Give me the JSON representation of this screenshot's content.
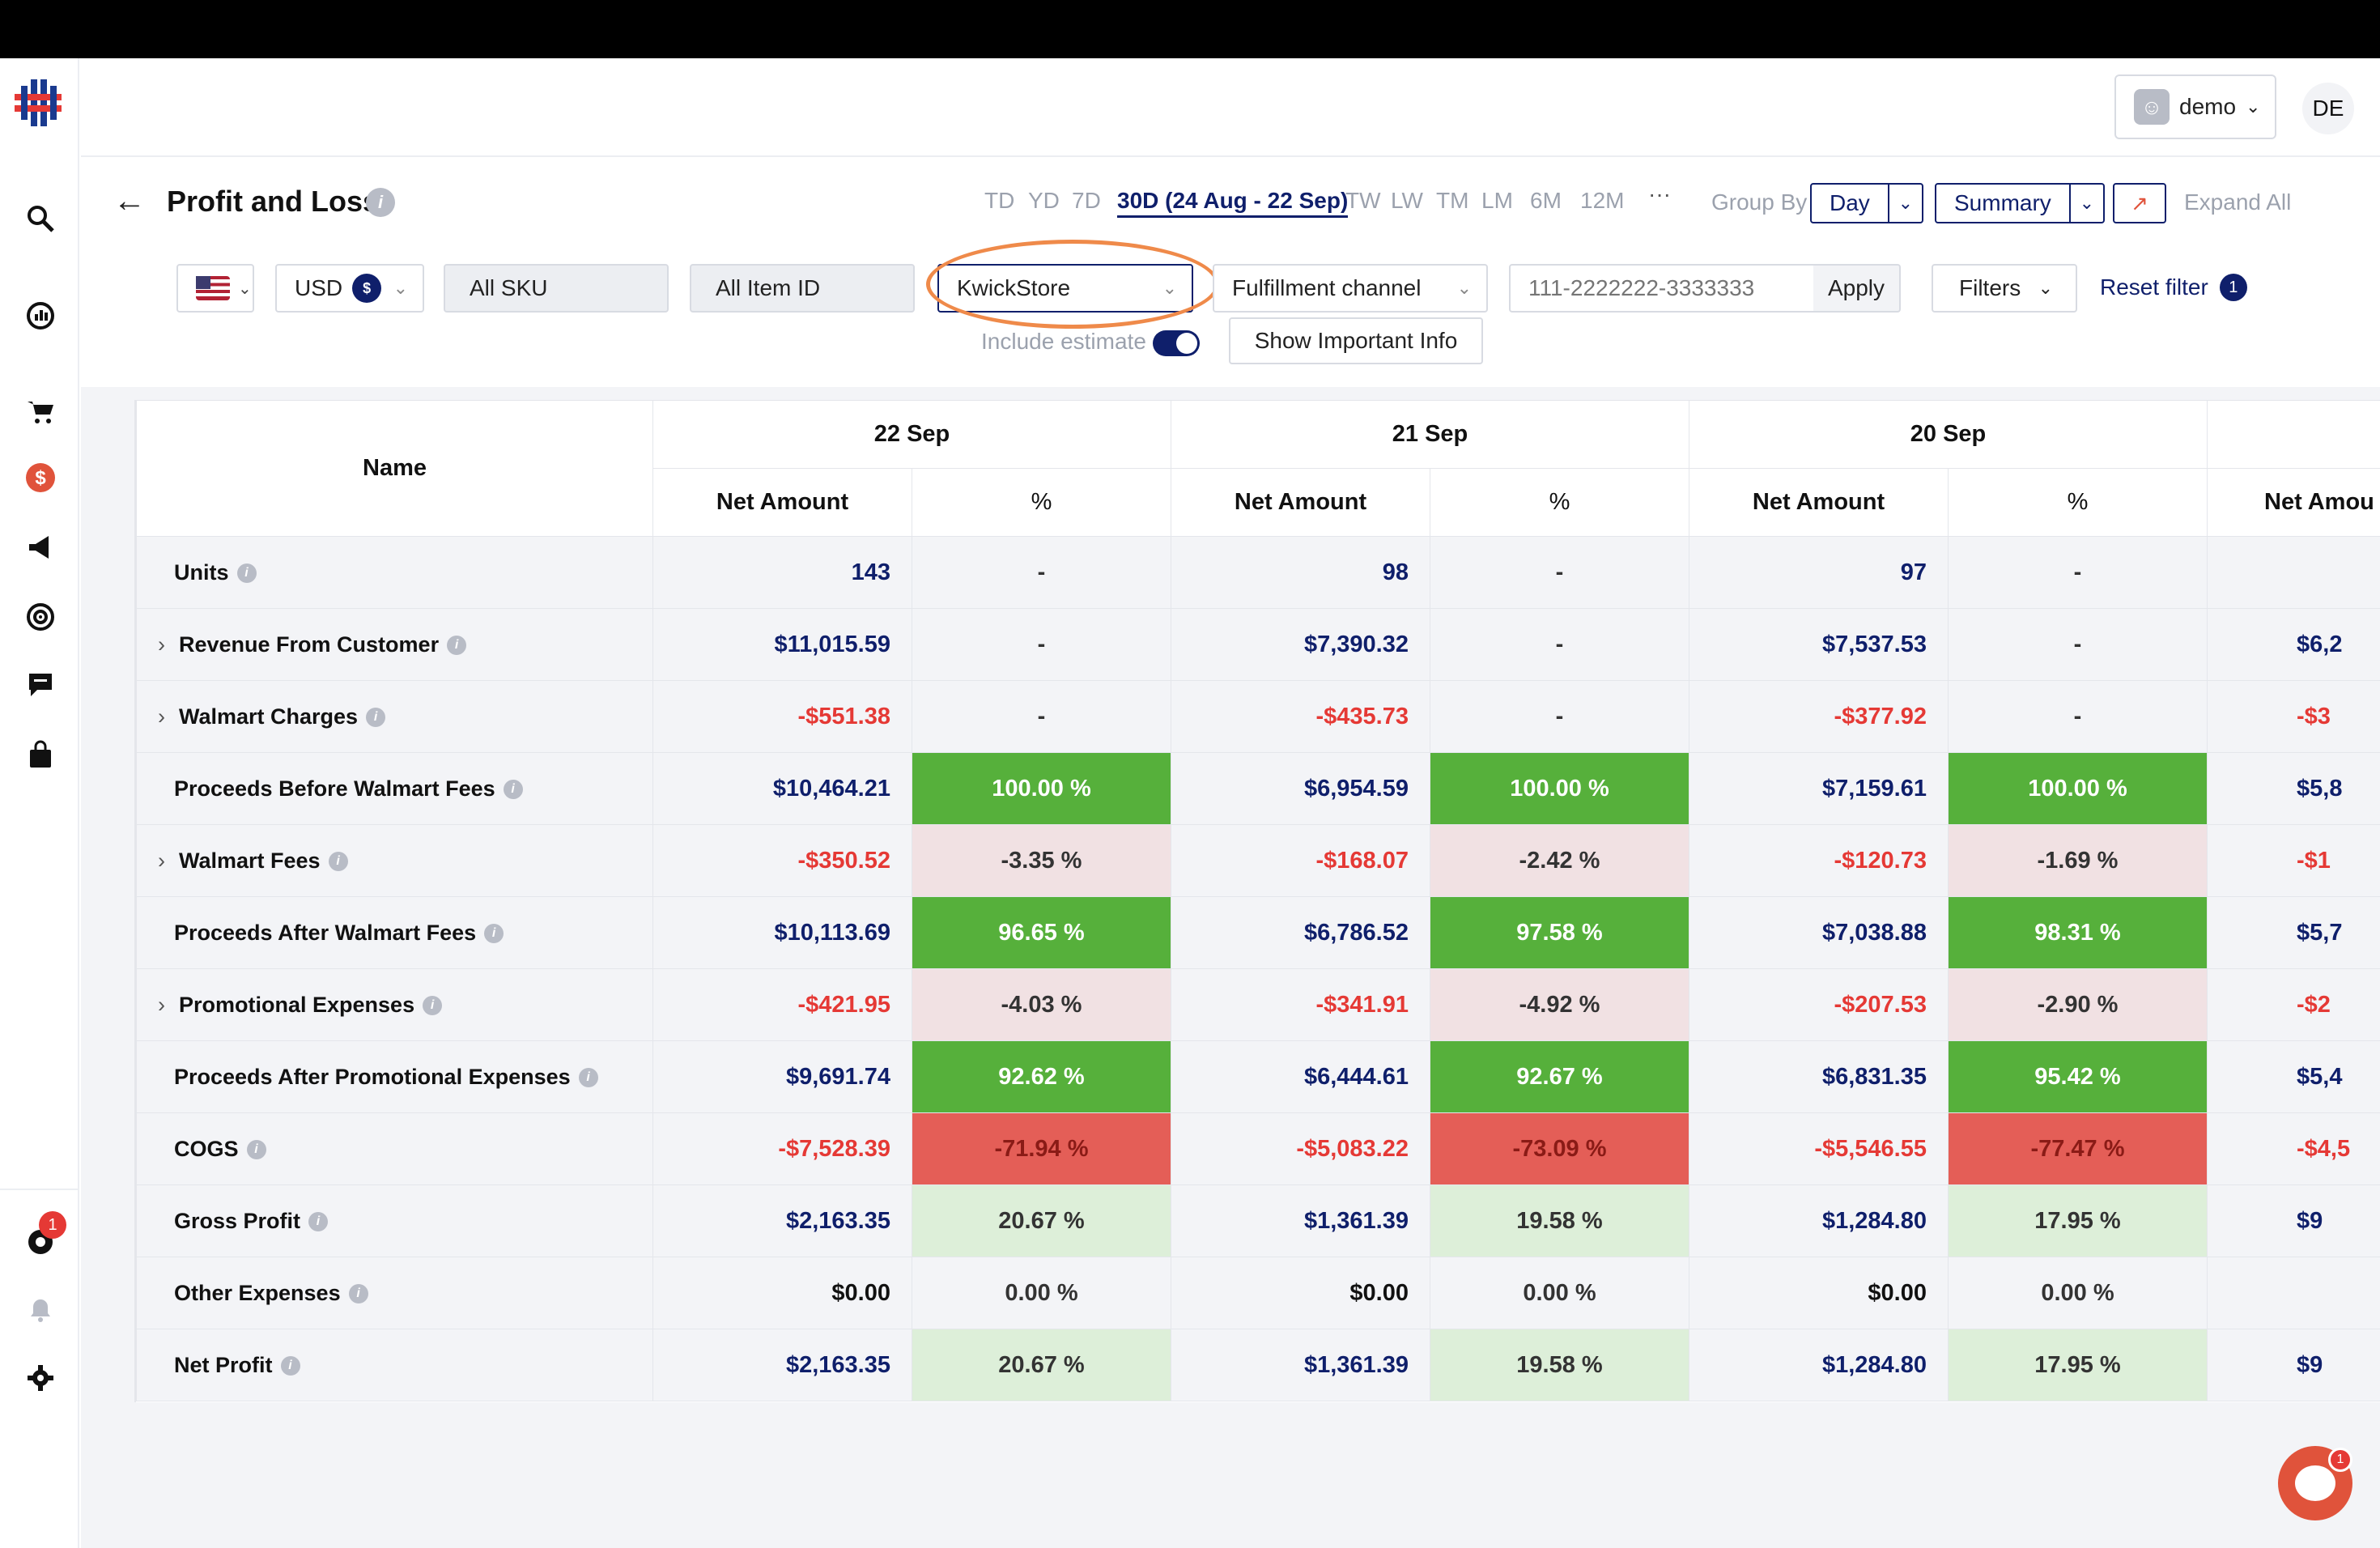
{
  "header": {
    "user": "demo",
    "initials": "DE"
  },
  "toolbar": {
    "title": "Profit and Loss",
    "ranges": [
      "TD",
      "YD",
      "7D",
      "30D (24 Aug - 22 Sep)",
      "TW",
      "LW",
      "TM",
      "LM",
      "6M",
      "12M"
    ],
    "active_range": "30D (24 Aug - 22 Sep)",
    "more": "···",
    "group_by_label": "Group By",
    "group_by_value": "Day",
    "view_value": "Summary",
    "expand_all_label": "Expand All"
  },
  "filters": {
    "currency": "USD",
    "currency_symbol": "$",
    "sku": "All SKU",
    "item_id": "All Item ID",
    "store": "KwickStore",
    "fulfillment": "Fulfillment channel",
    "order_placeholder": "111-2222222-3333333",
    "apply": "Apply",
    "filters_label": "Filters",
    "reset_label": "Reset filter",
    "reset_count": "1",
    "include_estimate": "Include estimate",
    "important_info": "Show Important Info"
  },
  "table": {
    "name_header": "Name",
    "dates": [
      "22 Sep",
      "21 Sep",
      "20 Sep"
    ],
    "net_amount": "Net Amount",
    "pct": "%",
    "partial_header": "Net Amou",
    "rows": [
      {
        "name": "Units",
        "expand": false,
        "info": true,
        "cells": [
          [
            "143",
            "-"
          ],
          [
            "98",
            "-"
          ],
          [
            "97",
            "-"
          ]
        ],
        "tone": "pos",
        "pct_style": "p-none",
        "partial": ""
      },
      {
        "name": "Revenue From Customer",
        "expand": true,
        "info": true,
        "cells": [
          [
            "$11,015.59",
            "-"
          ],
          [
            "$7,390.32",
            "-"
          ],
          [
            "$7,537.53",
            "-"
          ]
        ],
        "tone": "pos",
        "pct_style": "p-none",
        "partial": "$6,2"
      },
      {
        "name": "Walmart Charges",
        "expand": true,
        "info": true,
        "cells": [
          [
            "-$551.38",
            "-"
          ],
          [
            "-$435.73",
            "-"
          ],
          [
            "-$377.92",
            "-"
          ]
        ],
        "tone": "neg",
        "pct_style": "p-none",
        "partial": "-$3"
      },
      {
        "name": "Proceeds Before Walmart Fees",
        "expand": false,
        "info": true,
        "cells": [
          [
            "$10,464.21",
            "100.00 %"
          ],
          [
            "$6,954.59",
            "100.00 %"
          ],
          [
            "$7,159.61",
            "100.00 %"
          ]
        ],
        "tone": "pos",
        "pct_style": "p-green",
        "partial": "$5,8"
      },
      {
        "name": "Walmart Fees",
        "expand": true,
        "info": true,
        "cells": [
          [
            "-$350.52",
            "-3.35 %"
          ],
          [
            "-$168.07",
            "-2.42 %"
          ],
          [
            "-$120.73",
            "-1.69 %"
          ]
        ],
        "tone": "neg",
        "pct_style": "p-pink",
        "partial": "-$1"
      },
      {
        "name": "Proceeds After Walmart Fees",
        "expand": false,
        "info": true,
        "cells": [
          [
            "$10,113.69",
            "96.65 %"
          ],
          [
            "$6,786.52",
            "97.58 %"
          ],
          [
            "$7,038.88",
            "98.31 %"
          ]
        ],
        "tone": "pos",
        "pct_style": "p-green",
        "partial": "$5,7"
      },
      {
        "name": "Promotional Expenses",
        "expand": true,
        "info": true,
        "cells": [
          [
            "-$421.95",
            "-4.03 %"
          ],
          [
            "-$341.91",
            "-4.92 %"
          ],
          [
            "-$207.53",
            "-2.90 %"
          ]
        ],
        "tone": "neg",
        "pct_style": "p-pink",
        "partial": "-$2"
      },
      {
        "name": "Proceeds After Promotional Expenses",
        "expand": false,
        "info": true,
        "cells": [
          [
            "$9,691.74",
            "92.62 %"
          ],
          [
            "$6,444.61",
            "92.67 %"
          ],
          [
            "$6,831.35",
            "95.42 %"
          ]
        ],
        "tone": "pos",
        "pct_style": "p-green",
        "partial": "$5,4"
      },
      {
        "name": "COGS",
        "expand": false,
        "info": true,
        "cells": [
          [
            "-$7,528.39",
            "-71.94 %"
          ],
          [
            "-$5,083.22",
            "-73.09 %"
          ],
          [
            "-$5,546.55",
            "-77.47 %"
          ]
        ],
        "tone": "neg",
        "pct_style": "p-red",
        "partial": "-$4,5"
      },
      {
        "name": "Gross Profit",
        "expand": false,
        "info": true,
        "cells": [
          [
            "$2,163.35",
            "20.67 %"
          ],
          [
            "$1,361.39",
            "19.58 %"
          ],
          [
            "$1,284.80",
            "17.95 %"
          ]
        ],
        "tone": "pos",
        "pct_style": "p-light",
        "partial": "$9"
      },
      {
        "name": "Other Expenses",
        "expand": false,
        "info": true,
        "cells": [
          [
            "$0.00",
            "0.00 %"
          ],
          [
            "$0.00",
            "0.00 %"
          ],
          [
            "$0.00",
            "0.00 %"
          ]
        ],
        "tone": "zero",
        "pct_style": "p-none",
        "partial": ""
      },
      {
        "name": "Net Profit",
        "expand": false,
        "info": true,
        "cells": [
          [
            "$2,163.35",
            "20.67 %"
          ],
          [
            "$1,361.39",
            "19.58 %"
          ],
          [
            "$1,284.80",
            "17.95 %"
          ]
        ],
        "tone": "pos",
        "pct_style": "p-light",
        "partial": "$9"
      }
    ]
  },
  "badges": {
    "notifications": "1",
    "chat": "1"
  },
  "icons": [
    "app-logo-icon",
    "search-analytics-icon",
    "dashboard-icon",
    "cart-icon",
    "dollar-icon",
    "megaphone-icon",
    "target-icon",
    "chat-icon",
    "bag-icon",
    "notification-icon",
    "bell-icon",
    "gear-icon"
  ]
}
